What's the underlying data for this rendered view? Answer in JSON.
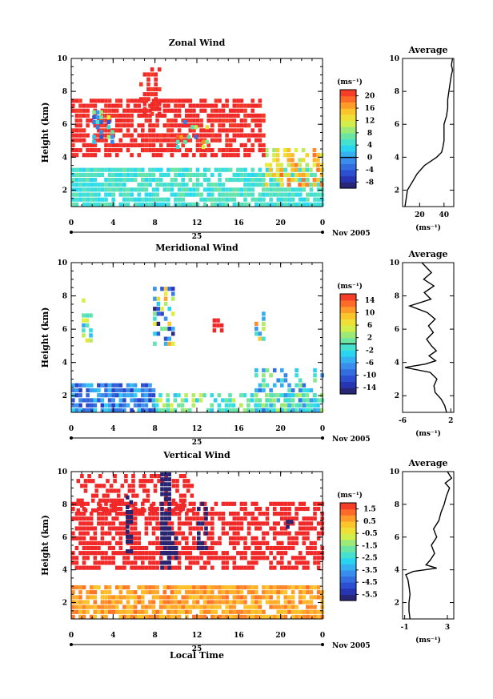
{
  "chart_data": [
    {
      "type": "heatmap",
      "title": "Zonal Wind",
      "ylabel": "Height (km)",
      "unit_label": "(ms⁻¹)",
      "xlim": [
        0,
        24
      ],
      "ylim": [
        1,
        10
      ],
      "x_ticks": [
        "0",
        "4",
        "8",
        "12",
        "16",
        "20",
        "0"
      ],
      "x_tick_values": [
        0,
        4,
        8,
        12,
        16,
        20,
        24
      ],
      "y_ticks": [
        "2",
        "4",
        "6",
        "8",
        "10"
      ],
      "y_tick_values": [
        2,
        4,
        6,
        8,
        10
      ],
      "date_day": "25",
      "date_month": "Nov 2005",
      "colorbar": {
        "ticks": [
          "-8",
          "-4",
          "0",
          "4",
          "8",
          "12",
          "16",
          "20"
        ],
        "tick_values": [
          -8,
          -4,
          0,
          4,
          8,
          12,
          16,
          20
        ],
        "range": [
          -10,
          22
        ],
        "zero_line": 0
      },
      "regions": [
        {
          "x": [
            0.0,
            24.0
          ],
          "y": [
            1.0,
            3.2
          ],
          "value": 5,
          "spread": 2,
          "density": 0.85
        },
        {
          "x": [
            18.5,
            24.0
          ],
          "y": [
            2.2,
            4.5
          ],
          "value": 14,
          "spread": 5,
          "density": 0.65
        },
        {
          "x": [
            0.0,
            18.5
          ],
          "y": [
            4.0,
            7.5
          ],
          "value": 22,
          "spread": 1,
          "density": 0.7
        },
        {
          "x": [
            2.0,
            3.8
          ],
          "y": [
            4.8,
            6.8
          ],
          "value": 4,
          "spread": 10,
          "density": 0.4
        },
        {
          "x": [
            6.5,
            8.5
          ],
          "y": [
            6.5,
            9.3
          ],
          "value": 22,
          "spread": 1,
          "density": 0.5
        },
        {
          "x": [
            10.0,
            13.0
          ],
          "y": [
            4.5,
            6.0
          ],
          "value": 8,
          "spread": 12,
          "density": 0.3
        }
      ],
      "average_profile": {
        "title": "Average",
        "xlabel": "(ms⁻¹)",
        "x_ticks": [
          "20",
          "40"
        ],
        "x_tick_values": [
          20,
          40
        ],
        "xlim": [
          6,
          48
        ],
        "y_ticks": [
          "2",
          "4",
          "6",
          "8",
          "10"
        ],
        "y_tick_values": [
          2,
          4,
          6,
          8,
          10
        ],
        "ylim": [
          1,
          10
        ],
        "y": [
          1.0,
          1.5,
          2.0,
          2.5,
          3.0,
          3.5,
          4.0,
          4.3,
          4.6,
          5.0,
          5.5,
          6.0,
          6.5,
          7.0,
          7.5,
          8.0,
          8.5,
          9.0,
          9.3,
          9.6,
          10.0
        ],
        "x": [
          8,
          9,
          10,
          14,
          18,
          24,
          34,
          38,
          39,
          40,
          40,
          40,
          42,
          43,
          43,
          44,
          45,
          46,
          47,
          46,
          47
        ]
      }
    },
    {
      "type": "heatmap",
      "title": "Meridional Wind",
      "ylabel": "Height (km)",
      "unit_label": "(ms⁻¹)",
      "xlim": [
        0,
        24
      ],
      "ylim": [
        1,
        10
      ],
      "x_ticks": [
        "0",
        "4",
        "8",
        "12",
        "16",
        "20",
        "0"
      ],
      "x_tick_values": [
        0,
        4,
        8,
        12,
        16,
        20,
        24
      ],
      "y_ticks": [
        "2",
        "4",
        "6",
        "8",
        "10"
      ],
      "y_tick_values": [
        2,
        4,
        6,
        8,
        10
      ],
      "date_day": "25",
      "date_month": "Nov 2005",
      "colorbar": {
        "ticks": [
          "-14",
          "-10",
          "-6",
          "-2",
          "2",
          "6",
          "10",
          "14"
        ],
        "tick_values": [
          -14,
          -10,
          -6,
          -2,
          2,
          6,
          10,
          14
        ],
        "range": [
          -16,
          16
        ],
        "zero_line": 0
      },
      "regions": [
        {
          "x": [
            0.0,
            8.0
          ],
          "y": [
            1.0,
            2.8
          ],
          "value": -8,
          "spread": 5,
          "density": 0.85
        },
        {
          "x": [
            8.0,
            24.0
          ],
          "y": [
            1.0,
            2.2
          ],
          "value": 1,
          "spread": 5,
          "density": 0.7
        },
        {
          "x": [
            17.5,
            24.0
          ],
          "y": [
            1.0,
            3.5
          ],
          "value": -3,
          "spread": 6,
          "density": 0.35
        },
        {
          "x": [
            1.0,
            1.8
          ],
          "y": [
            5.2,
            7.8
          ],
          "value": 2,
          "spread": 8,
          "density": 0.35
        },
        {
          "x": [
            7.8,
            9.8
          ],
          "y": [
            5.0,
            8.8
          ],
          "value": -2,
          "spread": 14,
          "density": 0.5
        },
        {
          "x": [
            13.5,
            14.5
          ],
          "y": [
            5.8,
            6.5
          ],
          "value": 16,
          "spread": 0,
          "density": 0.7
        },
        {
          "x": [
            17.5,
            18.8
          ],
          "y": [
            5.3,
            6.8
          ],
          "value": 2,
          "spread": 10,
          "density": 0.5
        }
      ],
      "average_profile": {
        "title": "Average",
        "xlabel": "(ms⁻¹)",
        "x_ticks": [
          "-6",
          "2"
        ],
        "x_tick_values": [
          -6,
          2
        ],
        "xlim": [
          -6,
          2.5
        ],
        "y_ticks": [
          "2",
          "4",
          "6",
          "8",
          "10"
        ],
        "y_tick_values": [
          2,
          4,
          6,
          8,
          10
        ],
        "ylim": [
          1,
          10
        ],
        "y": [
          1.0,
          1.4,
          1.8,
          2.2,
          2.6,
          3.0,
          3.4,
          3.7,
          3.9,
          4.1,
          4.4,
          4.7,
          5.0,
          5.4,
          5.8,
          6.2,
          6.6,
          7.0,
          7.4,
          7.8,
          8.2,
          8.6,
          9.0,
          9.4,
          10.0
        ],
        "x": [
          1.3,
          1.0,
          0.4,
          -0.6,
          -0.8,
          -0.3,
          -1.4,
          -5.6,
          -2.2,
          -0.5,
          -1.6,
          -0.4,
          -1.2,
          -2.0,
          -0.9,
          -1.7,
          -0.6,
          -1.9,
          -4.8,
          -1.3,
          -2.4,
          -0.8,
          -2.5,
          -1.2,
          -2.8
        ]
      }
    },
    {
      "type": "heatmap",
      "title": "Vertical Wind",
      "ylabel": "Height (km)",
      "xlabel": "Local Time",
      "unit_label": "(ms⁻¹)",
      "xlim": [
        0,
        24
      ],
      "ylim": [
        1,
        10
      ],
      "x_ticks": [
        "0",
        "4",
        "8",
        "12",
        "16",
        "20",
        "0"
      ],
      "x_tick_values": [
        0,
        4,
        8,
        12,
        16,
        20,
        24
      ],
      "y_ticks": [
        "2",
        "4",
        "6",
        "8",
        "10"
      ],
      "y_tick_values": [
        2,
        4,
        6,
        8,
        10
      ],
      "date_day": "25",
      "date_month": "Nov 2005",
      "colorbar": {
        "ticks": [
          "-5.5",
          "-4.5",
          "-3.5",
          "-2.5",
          "-1.5",
          "-0.5",
          "0.5",
          "1.5"
        ],
        "tick_values": [
          -5.5,
          -4.5,
          -3.5,
          -2.5,
          -1.5,
          -0.5,
          0.5,
          1.5
        ],
        "range": [
          -6,
          2
        ],
        "zero_line": null
      },
      "regions": [
        {
          "x": [
            0.0,
            24.0
          ],
          "y": [
            1.0,
            3.0
          ],
          "value": 0.7,
          "spread": 0.5,
          "density": 0.85
        },
        {
          "x": [
            0.0,
            24.0
          ],
          "y": [
            4.0,
            8.0
          ],
          "value": 2.0,
          "spread": 0,
          "density": 0.65
        },
        {
          "x": [
            0.5,
            11.5
          ],
          "y": [
            7.5,
            9.8
          ],
          "value": 2.0,
          "spread": 0,
          "density": 0.5
        },
        {
          "x": [
            8.5,
            9.3
          ],
          "y": [
            4.0,
            9.8
          ],
          "value": -5.8,
          "spread": 0,
          "density": 0.8
        },
        {
          "x": [
            5.2,
            5.8
          ],
          "y": [
            5.0,
            8.5
          ],
          "value": -5.8,
          "spread": 0,
          "density": 0.6
        },
        {
          "x": [
            8.8,
            10.0
          ],
          "y": [
            4.3,
            6.5
          ],
          "value": -5.8,
          "spread": 0,
          "density": 0.6
        },
        {
          "x": [
            12.0,
            12.8
          ],
          "y": [
            5.2,
            8.5
          ],
          "value": -5.8,
          "spread": 0,
          "density": 0.6
        },
        {
          "x": [
            20.5,
            21.0
          ],
          "y": [
            6.5,
            8.0
          ],
          "value": -5.8,
          "spread": 0,
          "density": 0.4
        }
      ],
      "average_profile": {
        "title": "Average",
        "xlabel": "(ms⁻¹)",
        "x_ticks": [
          "-1",
          "3"
        ],
        "x_tick_values": [
          -1,
          3
        ],
        "xlim": [
          -1.2,
          3.6
        ],
        "y_ticks": [
          "2",
          "4",
          "6",
          "8",
          "10"
        ],
        "y_tick_values": [
          2,
          4,
          6,
          8,
          10
        ],
        "ylim": [
          1,
          10
        ],
        "y": [
          1.0,
          1.5,
          2.0,
          2.5,
          3.0,
          3.4,
          3.7,
          3.9,
          4.1,
          4.3,
          4.6,
          5.0,
          5.5,
          6.0,
          6.5,
          7.0,
          7.5,
          8.0,
          8.5,
          9.0,
          9.3,
          9.6,
          10.0
        ],
        "x": [
          -0.5,
          -0.6,
          -0.6,
          -0.5,
          -0.6,
          -0.7,
          -0.9,
          -0.2,
          2.0,
          1.0,
          1.4,
          1.8,
          1.5,
          2.0,
          1.7,
          2.2,
          2.4,
          2.7,
          2.9,
          3.2,
          2.8,
          3.4,
          3.0
        ]
      }
    }
  ]
}
